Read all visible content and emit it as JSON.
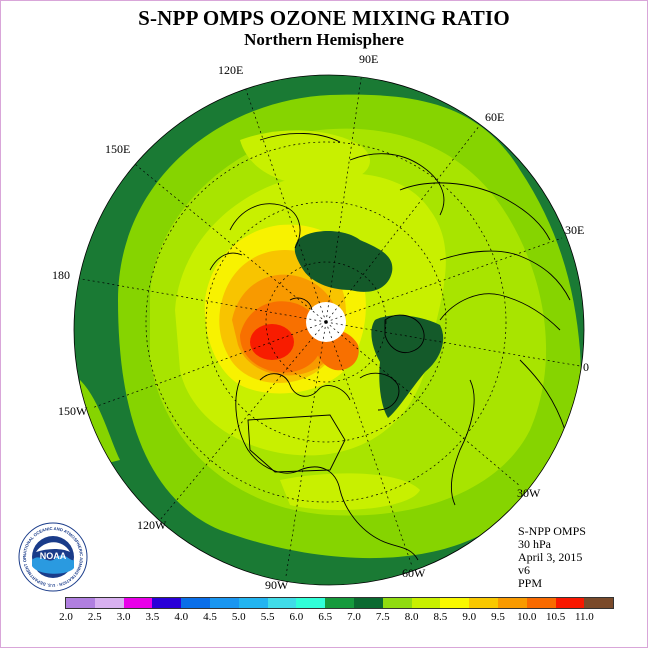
{
  "title": "S-NPP OMPS OZONE MIXING RATIO",
  "subtitle": "Northern Hemisphere",
  "longitude_labels": {
    "e90": "90E",
    "e120": "120E",
    "e60": "60E",
    "e150": "150E",
    "e30": "30E",
    "lon180": "180",
    "lon0": "0",
    "w150": "150W",
    "w30": "30W",
    "w120": "120W",
    "w60": "60W",
    "w90": "90W"
  },
  "info": {
    "instrument": "S-NPP OMPS",
    "level": "30 hPa",
    "date": "April 3, 2015",
    "version": "v6",
    "units": "PPM"
  },
  "logo": {
    "name": "NOAA",
    "ring_text": "NATIONAL OCEANIC AND ATMOSPHERIC ADMINISTRATION · U.S. DEPARTMENT OF COMMERCE"
  },
  "colorbar": {
    "ticks": [
      "2.0",
      "2.5",
      "3.0",
      "3.5",
      "4.0",
      "4.5",
      "5.0",
      "5.5",
      "6.0",
      "6.5",
      "7.0",
      "7.5",
      "8.0",
      "8.5",
      "9.0",
      "9.5",
      "10.0",
      "10.5",
      "11.0"
    ],
    "colors": [
      "#b07fe0",
      "#d8b0f0",
      "#e800e8",
      "#2a00d8",
      "#0a6ee8",
      "#1a96f0",
      "#22b4f0",
      "#40dce8",
      "#30ffd8",
      "#159a3c",
      "#0a6a30",
      "#90dc10",
      "#c8f000",
      "#f8f800",
      "#f8c800",
      "#f89a00",
      "#f86a00",
      "#f81800",
      "#7a4a2a"
    ]
  },
  "map_colors": {
    "outer_ring": "#1a7a34",
    "mid_green": "#86d400",
    "light_green": "#b4e80a",
    "yellow_green": "#d8f000",
    "yellow": "#f8f200",
    "gold": "#f8c400",
    "orange": "#f89a00",
    "dark_orange": "#f87000",
    "red": "#f81c00",
    "dark_green": "#145a2a",
    "coast": "#000000",
    "grid": "#000000"
  }
}
